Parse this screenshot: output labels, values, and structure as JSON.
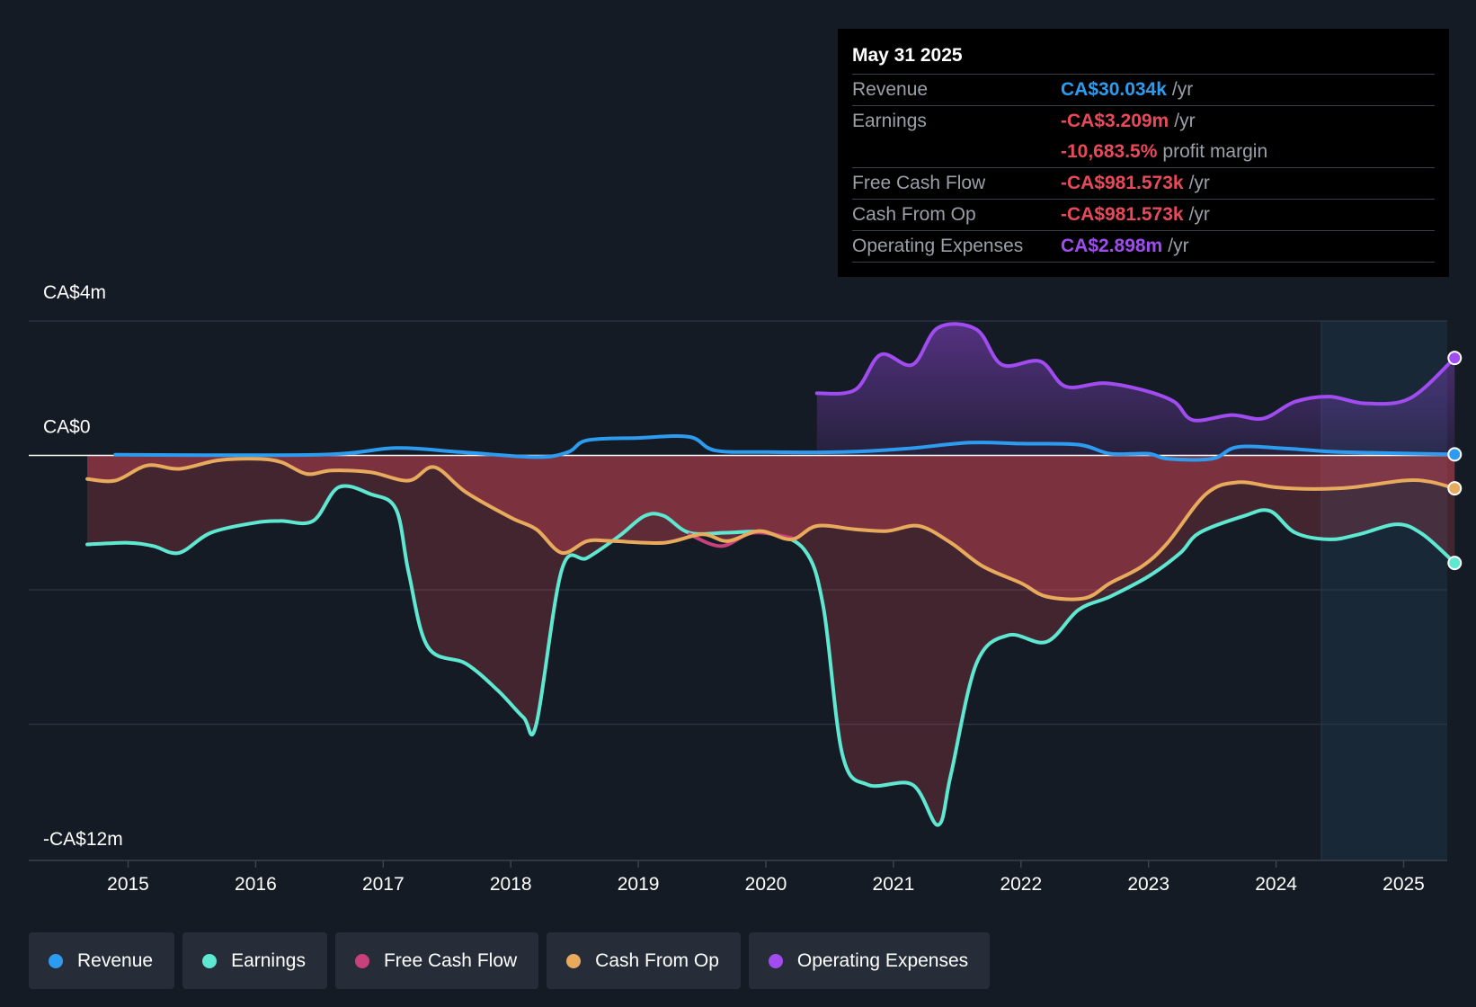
{
  "tooltip": {
    "date": "May 31 2025",
    "revenue": {
      "label": "Revenue",
      "value": "CA$30.034k",
      "unit": "/yr"
    },
    "earnings": {
      "label": "Earnings",
      "value": "-CA$3.209m",
      "unit": "/yr"
    },
    "margin": {
      "value": "-10,683.5%",
      "unit": "profit margin"
    },
    "fcf": {
      "label": "Free Cash Flow",
      "value": "-CA$981.573k",
      "unit": "/yr"
    },
    "cfo": {
      "label": "Cash From Op",
      "value": "-CA$981.573k",
      "unit": "/yr"
    },
    "opex": {
      "label": "Operating Expenses",
      "value": "CA$2.898m",
      "unit": "/yr"
    }
  },
  "legend": [
    {
      "label": "Revenue",
      "color": "#2d9cf0"
    },
    {
      "label": "Earnings",
      "color": "#5ee8d2"
    },
    {
      "label": "Free Cash Flow",
      "color": "#c8407c"
    },
    {
      "label": "Cash From Op",
      "color": "#e8aa5c"
    },
    {
      "label": "Operating Expenses",
      "color": "#a04cf0"
    }
  ],
  "colors": {
    "revenue": "#2d9cf0",
    "earnings": "#5ee8d2",
    "fcf": "#c8407c",
    "cfo": "#e8aa5c",
    "opex": "#a04cf0",
    "negative": "#e84a5a"
  },
  "chart_data": {
    "type": "line",
    "title": "",
    "y_labels": [
      "CA$4m",
      "CA$0",
      "-CA$12m"
    ],
    "ylim": [
      -12,
      4
    ],
    "y_unit": "CA$m",
    "x_ticks": [
      "2015",
      "2016",
      "2017",
      "2018",
      "2019",
      "2020",
      "2021",
      "2022",
      "2023",
      "2024",
      "2025"
    ],
    "x_tick_values": [
      2015,
      2016,
      2017,
      2018,
      2019,
      2020,
      2021,
      2022,
      2023,
      2024,
      2025
    ],
    "xlim": [
      2014.22,
      2025.4
    ],
    "forecast_start": 2024.42,
    "series": [
      {
        "name": "Revenue",
        "key": "revenue",
        "points": [
          [
            2014.9,
            0.02
          ],
          [
            2016.5,
            0.02
          ],
          [
            2017.1,
            0.22
          ],
          [
            2017.6,
            0.1
          ],
          [
            2018.2,
            -0.05
          ],
          [
            2018.45,
            0.1
          ],
          [
            2018.6,
            0.45
          ],
          [
            2019,
            0.52
          ],
          [
            2019.4,
            0.55
          ],
          [
            2019.6,
            0.15
          ],
          [
            2020,
            0.1
          ],
          [
            2020.6,
            0.1
          ],
          [
            2021.1,
            0.2
          ],
          [
            2021.6,
            0.38
          ],
          [
            2022,
            0.35
          ],
          [
            2022.45,
            0.32
          ],
          [
            2022.7,
            0.05
          ],
          [
            2023,
            0.05
          ],
          [
            2023.15,
            -0.1
          ],
          [
            2023.5,
            -0.1
          ],
          [
            2023.7,
            0.25
          ],
          [
            2024.1,
            0.2
          ],
          [
            2024.5,
            0.1
          ],
          [
            2025.4,
            0.03
          ]
        ]
      },
      {
        "name": "Earnings",
        "key": "earnings",
        "points": [
          [
            2014.68,
            -2.65
          ],
          [
            2015,
            -2.6
          ],
          [
            2015.2,
            -2.7
          ],
          [
            2015.4,
            -2.9
          ],
          [
            2015.65,
            -2.3
          ],
          [
            2016,
            -2.0
          ],
          [
            2016.2,
            -1.95
          ],
          [
            2016.45,
            -1.95
          ],
          [
            2016.65,
            -0.95
          ],
          [
            2016.9,
            -1.15
          ],
          [
            2017.1,
            -1.6
          ],
          [
            2017.2,
            -3.5
          ],
          [
            2017.35,
            -5.7
          ],
          [
            2017.65,
            -6.2
          ],
          [
            2017.9,
            -7.0
          ],
          [
            2018.1,
            -7.8
          ],
          [
            2018.2,
            -8.0
          ],
          [
            2018.4,
            -3.4
          ],
          [
            2018.6,
            -3.05
          ],
          [
            2018.85,
            -2.4
          ],
          [
            2019.05,
            -1.8
          ],
          [
            2019.2,
            -1.8
          ],
          [
            2019.4,
            -2.3
          ],
          [
            2019.7,
            -2.3
          ],
          [
            2020,
            -2.3
          ],
          [
            2020.3,
            -2.8
          ],
          [
            2020.45,
            -4.5
          ],
          [
            2020.6,
            -8.9
          ],
          [
            2020.8,
            -9.8
          ],
          [
            2021.15,
            -9.8
          ],
          [
            2021.35,
            -11.0
          ],
          [
            2021.45,
            -9.5
          ],
          [
            2021.65,
            -6.2
          ],
          [
            2021.9,
            -5.35
          ],
          [
            2022.2,
            -5.55
          ],
          [
            2022.45,
            -4.6
          ],
          [
            2022.7,
            -4.2
          ],
          [
            2023,
            -3.6
          ],
          [
            2023.25,
            -2.9
          ],
          [
            2023.4,
            -2.3
          ],
          [
            2023.75,
            -1.8
          ],
          [
            2023.95,
            -1.65
          ],
          [
            2024.15,
            -2.3
          ],
          [
            2024.42,
            -2.5
          ],
          [
            2024.65,
            -2.35
          ],
          [
            2024.95,
            -2.05
          ],
          [
            2025.15,
            -2.35
          ],
          [
            2025.4,
            -3.2
          ]
        ]
      },
      {
        "name": "Free Cash Flow",
        "key": "fcf",
        "points": [
          [
            2019.4,
            -2.35
          ],
          [
            2019.65,
            -2.7
          ],
          [
            2019.9,
            -2.3
          ],
          [
            2020.2,
            -2.45
          ]
        ]
      },
      {
        "name": "Cash From Op",
        "key": "cfo",
        "points": [
          [
            2014.68,
            -0.7
          ],
          [
            2014.9,
            -0.75
          ],
          [
            2015.15,
            -0.3
          ],
          [
            2015.4,
            -0.4
          ],
          [
            2015.7,
            -0.15
          ],
          [
            2016,
            -0.1
          ],
          [
            2016.2,
            -0.2
          ],
          [
            2016.4,
            -0.55
          ],
          [
            2016.6,
            -0.45
          ],
          [
            2016.9,
            -0.5
          ],
          [
            2017.2,
            -0.75
          ],
          [
            2017.4,
            -0.35
          ],
          [
            2017.65,
            -1.1
          ],
          [
            2018,
            -1.85
          ],
          [
            2018.2,
            -2.2
          ],
          [
            2018.4,
            -2.9
          ],
          [
            2018.6,
            -2.55
          ],
          [
            2018.8,
            -2.55
          ],
          [
            2019.2,
            -2.6
          ],
          [
            2019.5,
            -2.35
          ],
          [
            2019.7,
            -2.55
          ],
          [
            2019.95,
            -2.25
          ],
          [
            2020.2,
            -2.5
          ],
          [
            2020.4,
            -2.1
          ],
          [
            2020.7,
            -2.2
          ],
          [
            2020.95,
            -2.25
          ],
          [
            2021.2,
            -2.1
          ],
          [
            2021.45,
            -2.6
          ],
          [
            2021.7,
            -3.3
          ],
          [
            2022,
            -3.8
          ],
          [
            2022.2,
            -4.2
          ],
          [
            2022.5,
            -4.25
          ],
          [
            2022.7,
            -3.8
          ],
          [
            2022.95,
            -3.3
          ],
          [
            2023.15,
            -2.6
          ],
          [
            2023.45,
            -1.15
          ],
          [
            2023.7,
            -0.8
          ],
          [
            2024,
            -0.95
          ],
          [
            2024.3,
            -1.0
          ],
          [
            2024.6,
            -0.95
          ],
          [
            2025,
            -0.75
          ],
          [
            2025.2,
            -0.78
          ],
          [
            2025.4,
            -0.98
          ]
        ]
      },
      {
        "name": "Operating Expenses",
        "key": "opex",
        "points": [
          [
            2020.4,
            1.85
          ],
          [
            2020.7,
            1.95
          ],
          [
            2020.9,
            3.0
          ],
          [
            2021.15,
            2.7
          ],
          [
            2021.35,
            3.8
          ],
          [
            2021.65,
            3.75
          ],
          [
            2021.85,
            2.7
          ],
          [
            2022.15,
            2.8
          ],
          [
            2022.35,
            2.05
          ],
          [
            2022.65,
            2.15
          ],
          [
            2022.95,
            1.95
          ],
          [
            2023.2,
            1.6
          ],
          [
            2023.35,
            1.05
          ],
          [
            2023.65,
            1.2
          ],
          [
            2023.9,
            1.1
          ],
          [
            2024.15,
            1.6
          ],
          [
            2024.42,
            1.75
          ],
          [
            2024.7,
            1.55
          ],
          [
            2025.05,
            1.7
          ],
          [
            2025.4,
            2.9
          ]
        ]
      }
    ]
  }
}
